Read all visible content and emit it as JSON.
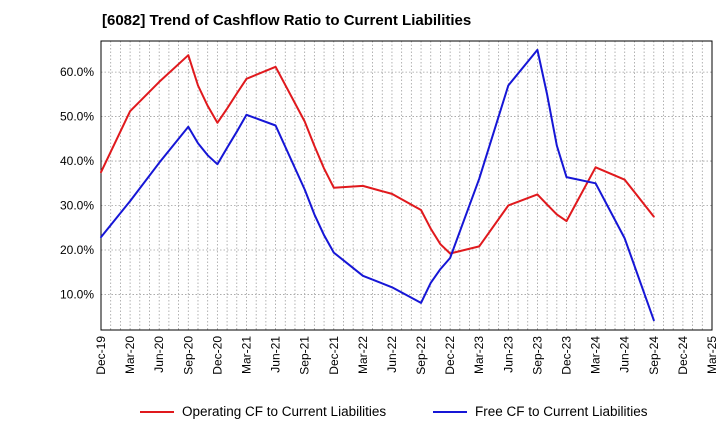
{
  "chart_title": "[6082]  Trend of Cashflow Ratio to Current Liabilities",
  "chart_data": {
    "type": "line",
    "title": "[6082]  Trend of Cashflow Ratio to Current Liabilities",
    "xlabel": "",
    "ylabel": "",
    "grid": true,
    "legend_position": "bottom",
    "x_tick_labels": [
      "Dec-19",
      "Mar-20",
      "Jun-20",
      "Sep-20",
      "Dec-20",
      "Mar-21",
      "Jun-21",
      "Sep-21",
      "Dec-21",
      "Mar-22",
      "Jun-22",
      "Sep-22",
      "Dec-22",
      "Mar-23",
      "Jun-23",
      "Sep-23",
      "Dec-23",
      "Mar-24",
      "Jun-24",
      "Sep-24",
      "Dec-24",
      "Mar-25"
    ],
    "y_tick_labels": [
      "10.0%",
      "20.0%",
      "30.0%",
      "40.0%",
      "50.0%",
      "60.0%"
    ],
    "y_ticks": [
      10,
      20,
      30,
      40,
      50,
      60
    ],
    "ylim": [
      2,
      67
    ],
    "x_range_months": [
      "2019-12",
      "2025-03"
    ],
    "series": [
      {
        "name": "Operating CF to Current Liabilities",
        "color": "#e0191d",
        "x": [
          "2019-12",
          "2020-03",
          "2020-06",
          "2020-09",
          "2020-10",
          "2020-11",
          "2020-12",
          "2021-01",
          "2021-02",
          "2021-03",
          "2021-06",
          "2021-09",
          "2021-10",
          "2021-11",
          "2021-12",
          "2022-03",
          "2022-06",
          "2022-09",
          "2022-10",
          "2022-11",
          "2022-12",
          "2023-03",
          "2023-06",
          "2023-09",
          "2023-10",
          "2023-11",
          "2023-12",
          "2024-03",
          "2024-06",
          "2024-09"
        ],
        "values": [
          37.5,
          51.2,
          57.8,
          63.8,
          57.0,
          52.4,
          48.6,
          51.8,
          55.2,
          58.5,
          61.2,
          48.9,
          43.4,
          38.3,
          34.0,
          34.4,
          32.6,
          29.0,
          24.8,
          21.3,
          19.2,
          20.8,
          30.0,
          32.5,
          30.2,
          28.0,
          26.5,
          38.6,
          35.8,
          27.5
        ]
      },
      {
        "name": "Free CF to Current Liabilities",
        "color": "#1616d6",
        "x": [
          "2019-12",
          "2020-03",
          "2020-06",
          "2020-09",
          "2020-10",
          "2020-11",
          "2020-12",
          "2021-01",
          "2021-02",
          "2021-03",
          "2021-06",
          "2021-09",
          "2021-10",
          "2021-11",
          "2021-12",
          "2022-03",
          "2022-06",
          "2022-09",
          "2022-10",
          "2022-11",
          "2022-12",
          "2023-03",
          "2023-06",
          "2023-09",
          "2023-10",
          "2023-11",
          "2023-12",
          "2024-03",
          "2024-06",
          "2024-09"
        ],
        "values": [
          22.9,
          31.0,
          39.6,
          47.7,
          44.0,
          41.3,
          39.3,
          43.0,
          46.6,
          50.4,
          48.0,
          33.6,
          28.0,
          23.3,
          19.4,
          14.2,
          11.6,
          8.1,
          12.6,
          15.7,
          18.2,
          36.0,
          57.0,
          65.0,
          55.0,
          43.5,
          36.4,
          35.0,
          22.6,
          4.2
        ]
      }
    ]
  },
  "legend": {
    "items": [
      {
        "label": "Operating CF to Current Liabilities",
        "color": "#e0191d"
      },
      {
        "label": "Free CF to Current Liabilities",
        "color": "#1616d6"
      }
    ]
  }
}
